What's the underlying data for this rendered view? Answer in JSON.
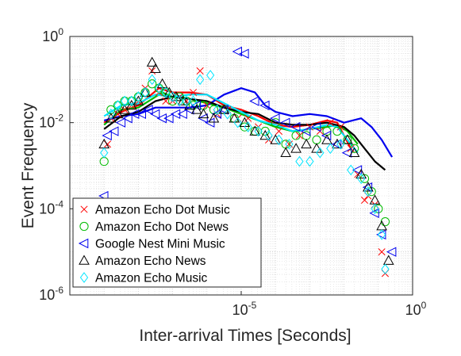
{
  "chart_data": {
    "type": "scatter",
    "title": "",
    "xlabel": "Inter-arrival Times [Seconds]",
    "ylabel": "Event Frequency",
    "x_scale": "log",
    "y_scale": "log",
    "xlim_log10": [
      -10,
      0
    ],
    "ylim_log10": [
      -6,
      0
    ],
    "x_ticks": [
      {
        "base": "10",
        "exp": "-5",
        "log": -5
      },
      {
        "base": "10",
        "exp": "0",
        "log": 0
      }
    ],
    "y_ticks": [
      {
        "base": "10",
        "exp": "-6",
        "log": -6
      },
      {
        "base": "10",
        "exp": "-4",
        "log": -4
      },
      {
        "base": "10",
        "exp": "-2",
        "log": -2
      },
      {
        "base": "10",
        "exp": "0",
        "log": 0
      }
    ],
    "grid": "dotted major and minor",
    "legend_position": "bottom-left",
    "series": [
      {
        "name": "Amazon Echo Dot Music",
        "color": "#ff0000",
        "marker": "x",
        "points": [
          [
            -8.9,
            -2.5
          ],
          [
            -8.8,
            -1.9
          ],
          [
            -8.6,
            -1.8
          ],
          [
            -8.4,
            -1.7
          ],
          [
            -8.2,
            -1.6
          ],
          [
            -8.0,
            -1.5
          ],
          [
            -7.8,
            -1.2
          ],
          [
            -7.6,
            -0.8
          ],
          [
            -7.4,
            -1.3
          ],
          [
            -7.2,
            -1.5
          ],
          [
            -7.0,
            -1.5
          ],
          [
            -6.8,
            -1.4
          ],
          [
            -6.6,
            -1.5
          ],
          [
            -6.4,
            -1.3
          ],
          [
            -6.2,
            -0.8
          ],
          [
            -6.0,
            -1.6
          ],
          [
            -5.7,
            -1.8
          ],
          [
            -5.4,
            -1.7
          ],
          [
            -5.1,
            -1.9
          ],
          [
            -4.8,
            -1.9
          ],
          [
            -4.5,
            -2.1
          ],
          [
            -4.2,
            -2.4
          ],
          [
            -3.9,
            -2.2
          ],
          [
            -3.6,
            -2.5
          ],
          [
            -3.3,
            -2.3
          ],
          [
            -3.0,
            -2.1
          ],
          [
            -2.7,
            -2.2
          ],
          [
            -2.4,
            -2.0
          ],
          [
            -2.1,
            -2.1
          ],
          [
            -1.8,
            -2.6
          ],
          [
            -1.6,
            -3.2
          ],
          [
            -1.4,
            -3.8
          ],
          [
            -1.3,
            -3.7
          ],
          [
            -1.1,
            -3.9
          ],
          [
            -0.9,
            -5.0
          ],
          [
            -0.8,
            -5.5
          ]
        ],
        "trend": [
          [
            -9.0,
            -2.0
          ],
          [
            -8.5,
            -1.75
          ],
          [
            -8.0,
            -1.6
          ],
          [
            -7.7,
            -1.4
          ],
          [
            -7.4,
            -1.2
          ],
          [
            -7.0,
            -1.3
          ],
          [
            -6.5,
            -1.3
          ],
          [
            -6.0,
            -1.35
          ],
          [
            -5.5,
            -1.6
          ],
          [
            -5.0,
            -1.7
          ],
          [
            -4.5,
            -1.85
          ],
          [
            -4.0,
            -2.05
          ],
          [
            -3.5,
            -2.1
          ],
          [
            -3.0,
            -2.05
          ],
          [
            -2.5,
            -1.95
          ],
          [
            -2.2,
            -2.0
          ],
          [
            -2.0,
            -2.3
          ],
          [
            -1.8,
            -2.6
          ]
        ]
      },
      {
        "name": "Amazon Echo Dot News",
        "color": "#00bb00",
        "marker": "circle",
        "points": [
          [
            -9.0,
            -2.9
          ],
          [
            -8.8,
            -1.7
          ],
          [
            -8.6,
            -1.6
          ],
          [
            -8.4,
            -1.5
          ],
          [
            -8.2,
            -1.5
          ],
          [
            -8.0,
            -1.4
          ],
          [
            -7.8,
            -1.3
          ],
          [
            -7.6,
            -1.1
          ],
          [
            -7.4,
            -1.2
          ],
          [
            -7.2,
            -1.3
          ],
          [
            -7.0,
            -1.5
          ],
          [
            -6.8,
            -1.4
          ],
          [
            -6.6,
            -1.5
          ],
          [
            -6.4,
            -1.6
          ],
          [
            -6.1,
            -1.6
          ],
          [
            -5.8,
            -1.7
          ],
          [
            -5.5,
            -1.7
          ],
          [
            -5.2,
            -1.9
          ],
          [
            -4.9,
            -2.1
          ],
          [
            -4.6,
            -2.2
          ],
          [
            -4.3,
            -2.2
          ],
          [
            -4.0,
            -2.0
          ],
          [
            -3.7,
            -2.5
          ],
          [
            -3.4,
            -2.3
          ],
          [
            -3.1,
            -2.3
          ],
          [
            -2.8,
            -2.4
          ],
          [
            -2.5,
            -2.2
          ],
          [
            -2.2,
            -2.2
          ],
          [
            -1.9,
            -2.4
          ],
          [
            -1.7,
            -2.6
          ],
          [
            -1.4,
            -3.3
          ],
          [
            -1.2,
            -3.6
          ],
          [
            -1.0,
            -4.0
          ],
          [
            -0.8,
            -4.3
          ]
        ],
        "trend": [
          [
            -9.0,
            -2.05
          ],
          [
            -8.5,
            -1.7
          ],
          [
            -8.0,
            -1.65
          ],
          [
            -7.6,
            -1.45
          ],
          [
            -7.3,
            -1.3
          ],
          [
            -7.0,
            -1.4
          ],
          [
            -6.5,
            -1.45
          ],
          [
            -6.0,
            -1.55
          ],
          [
            -5.5,
            -1.65
          ],
          [
            -5.0,
            -1.8
          ],
          [
            -4.5,
            -1.95
          ],
          [
            -4.0,
            -2.1
          ],
          [
            -3.5,
            -2.2
          ],
          [
            -3.0,
            -2.15
          ],
          [
            -2.5,
            -2.1
          ],
          [
            -2.2,
            -2.05
          ],
          [
            -1.9,
            -2.2
          ],
          [
            -1.6,
            -2.5
          ]
        ]
      },
      {
        "name": "Google Nest Mini Music",
        "color": "#0000ee",
        "marker": "triangle-left",
        "points": [
          [
            -9.0,
            -3.7
          ],
          [
            -8.9,
            -2.3
          ],
          [
            -8.7,
            -2.2
          ],
          [
            -8.5,
            -2.0
          ],
          [
            -8.3,
            -1.9
          ],
          [
            -8.1,
            -1.8
          ],
          [
            -7.9,
            -1.8
          ],
          [
            -7.7,
            -1.7
          ],
          [
            -7.5,
            -1.8
          ],
          [
            -7.3,
            -1.9
          ],
          [
            -7.1,
            -1.9
          ],
          [
            -6.9,
            -1.8
          ],
          [
            -6.7,
            -1.8
          ],
          [
            -6.5,
            -1.7
          ],
          [
            -6.3,
            -1.6
          ],
          [
            -6.1,
            -1.9
          ],
          [
            -5.9,
            -2.0
          ],
          [
            -5.7,
            -1.8
          ],
          [
            -5.5,
            -1.7
          ],
          [
            -5.1,
            -0.35
          ],
          [
            -4.9,
            -0.4
          ],
          [
            -4.6,
            -1.5
          ],
          [
            -4.3,
            -1.6
          ],
          [
            -4.0,
            -1.9
          ],
          [
            -3.7,
            -2.0
          ],
          [
            -3.4,
            -2.1
          ],
          [
            -3.1,
            -2.2
          ],
          [
            -2.8,
            -2.1
          ],
          [
            -2.5,
            -2.3
          ],
          [
            -2.2,
            -2.5
          ],
          [
            -1.9,
            -2.7
          ],
          [
            -1.6,
            -3.1
          ],
          [
            -1.3,
            -3.5
          ],
          [
            -1.1,
            -4.1
          ],
          [
            -0.9,
            -4.6
          ],
          [
            -0.6,
            -5.0
          ]
        ],
        "trend": [
          [
            -9.0,
            -1.95
          ],
          [
            -8.5,
            -1.85
          ],
          [
            -8.0,
            -1.8
          ],
          [
            -7.5,
            -1.65
          ],
          [
            -7.0,
            -1.65
          ],
          [
            -6.5,
            -1.65
          ],
          [
            -6.0,
            -1.6
          ],
          [
            -5.5,
            -1.35
          ],
          [
            -5.0,
            -1.2
          ],
          [
            -4.6,
            -1.3
          ],
          [
            -4.3,
            -1.6
          ],
          [
            -4.0,
            -1.75
          ],
          [
            -3.5,
            -1.85
          ],
          [
            -3.0,
            -1.8
          ],
          [
            -2.5,
            -1.85
          ],
          [
            -2.0,
            -2.0
          ],
          [
            -1.5,
            -1.9
          ],
          [
            -1.2,
            -2.1
          ],
          [
            -0.9,
            -2.4
          ],
          [
            -0.6,
            -2.8
          ]
        ]
      },
      {
        "name": "Amazon Echo News",
        "color": "#000000",
        "marker": "triangle-up",
        "points": [
          [
            -9.0,
            -2.5
          ],
          [
            -8.8,
            -1.9
          ],
          [
            -8.6,
            -1.8
          ],
          [
            -8.4,
            -1.7
          ],
          [
            -8.2,
            -1.6
          ],
          [
            -8.0,
            -1.5
          ],
          [
            -7.8,
            -1.3
          ],
          [
            -7.6,
            -0.6
          ],
          [
            -7.5,
            -0.75
          ],
          [
            -7.3,
            -1.1
          ],
          [
            -7.1,
            -1.3
          ],
          [
            -6.9,
            -1.4
          ],
          [
            -6.7,
            -1.5
          ],
          [
            -6.5,
            -1.6
          ],
          [
            -6.3,
            -1.7
          ],
          [
            -6.1,
            -1.8
          ],
          [
            -5.8,
            -1.9
          ],
          [
            -5.5,
            -1.7
          ],
          [
            -5.2,
            -1.9
          ],
          [
            -4.9,
            -2.0
          ],
          [
            -4.6,
            -2.2
          ],
          [
            -4.3,
            -2.3
          ],
          [
            -4.0,
            -2.4
          ],
          [
            -3.7,
            -2.7
          ],
          [
            -3.4,
            -2.6
          ],
          [
            -3.1,
            -2.5
          ],
          [
            -2.8,
            -2.6
          ],
          [
            -2.5,
            -2.4
          ],
          [
            -2.2,
            -2.5
          ],
          [
            -1.9,
            -2.4
          ],
          [
            -1.7,
            -2.7
          ],
          [
            -1.5,
            -3.2
          ],
          [
            -1.3,
            -3.5
          ],
          [
            -1.1,
            -3.8
          ],
          [
            -0.9,
            -4.4
          ],
          [
            -0.7,
            -5.2
          ]
        ],
        "trend": [
          [
            -9.0,
            -2.15
          ],
          [
            -8.5,
            -1.85
          ],
          [
            -8.0,
            -1.75
          ],
          [
            -7.5,
            -1.5
          ],
          [
            -7.0,
            -1.4
          ],
          [
            -6.5,
            -1.45
          ],
          [
            -6.0,
            -1.5
          ],
          [
            -5.5,
            -1.65
          ],
          [
            -5.0,
            -1.75
          ],
          [
            -4.5,
            -1.8
          ],
          [
            -4.0,
            -2.0
          ],
          [
            -3.5,
            -2.05
          ],
          [
            -3.0,
            -2.05
          ],
          [
            -2.5,
            -2.0
          ],
          [
            -2.0,
            -2.1
          ],
          [
            -1.7,
            -2.3
          ],
          [
            -1.4,
            -2.6
          ],
          [
            -1.1,
            -2.9
          ],
          [
            -0.8,
            -3.1
          ]
        ]
      },
      {
        "name": "Amazon Echo Music",
        "color": "#00e5ff",
        "marker": "diamond",
        "points": [
          [
            -9.0,
            -2.7
          ],
          [
            -8.8,
            -1.8
          ],
          [
            -8.6,
            -1.6
          ],
          [
            -8.4,
            -1.5
          ],
          [
            -8.2,
            -1.5
          ],
          [
            -8.0,
            -1.4
          ],
          [
            -7.8,
            -1.3
          ],
          [
            -7.6,
            -1.0
          ],
          [
            -7.4,
            -1.2
          ],
          [
            -7.2,
            -1.3
          ],
          [
            -7.0,
            -1.4
          ],
          [
            -6.8,
            -1.5
          ],
          [
            -6.6,
            -1.5
          ],
          [
            -6.4,
            -1.5
          ],
          [
            -6.2,
            -1.0
          ],
          [
            -5.9,
            -0.9
          ],
          [
            -5.7,
            -1.7
          ],
          [
            -5.4,
            -1.8
          ],
          [
            -5.1,
            -2.0
          ],
          [
            -4.8,
            -2.1
          ],
          [
            -4.5,
            -2.2
          ],
          [
            -4.2,
            -2.3
          ],
          [
            -3.9,
            -2.4
          ],
          [
            -3.6,
            -2.5
          ],
          [
            -3.3,
            -2.9
          ],
          [
            -3.0,
            -2.9
          ],
          [
            -2.7,
            -2.7
          ],
          [
            -2.4,
            -2.6
          ],
          [
            -2.1,
            -2.5
          ],
          [
            -1.8,
            -3.1
          ],
          [
            -1.5,
            -3.3
          ],
          [
            -1.3,
            -3.6
          ],
          [
            -1.1,
            -4.0
          ],
          [
            -0.9,
            -4.6
          ],
          [
            -0.8,
            -5.4
          ]
        ],
        "trend": [
          [
            -9.0,
            -1.85
          ],
          [
            -8.5,
            -1.6
          ],
          [
            -8.0,
            -1.55
          ],
          [
            -7.5,
            -1.35
          ],
          [
            -7.0,
            -1.4
          ],
          [
            -6.5,
            -1.35
          ],
          [
            -6.0,
            -1.35
          ],
          [
            -5.5,
            -1.55
          ],
          [
            -5.0,
            -1.75
          ],
          [
            -4.5,
            -1.95
          ],
          [
            -4.0,
            -2.05
          ],
          [
            -3.5,
            -2.2
          ],
          [
            -3.0,
            -2.15
          ],
          [
            -2.5,
            -2.05
          ],
          [
            -2.2,
            -2.1
          ],
          [
            -2.0,
            -2.3
          ],
          [
            -1.8,
            -2.5
          ],
          [
            -1.6,
            -2.7
          ]
        ]
      }
    ]
  }
}
